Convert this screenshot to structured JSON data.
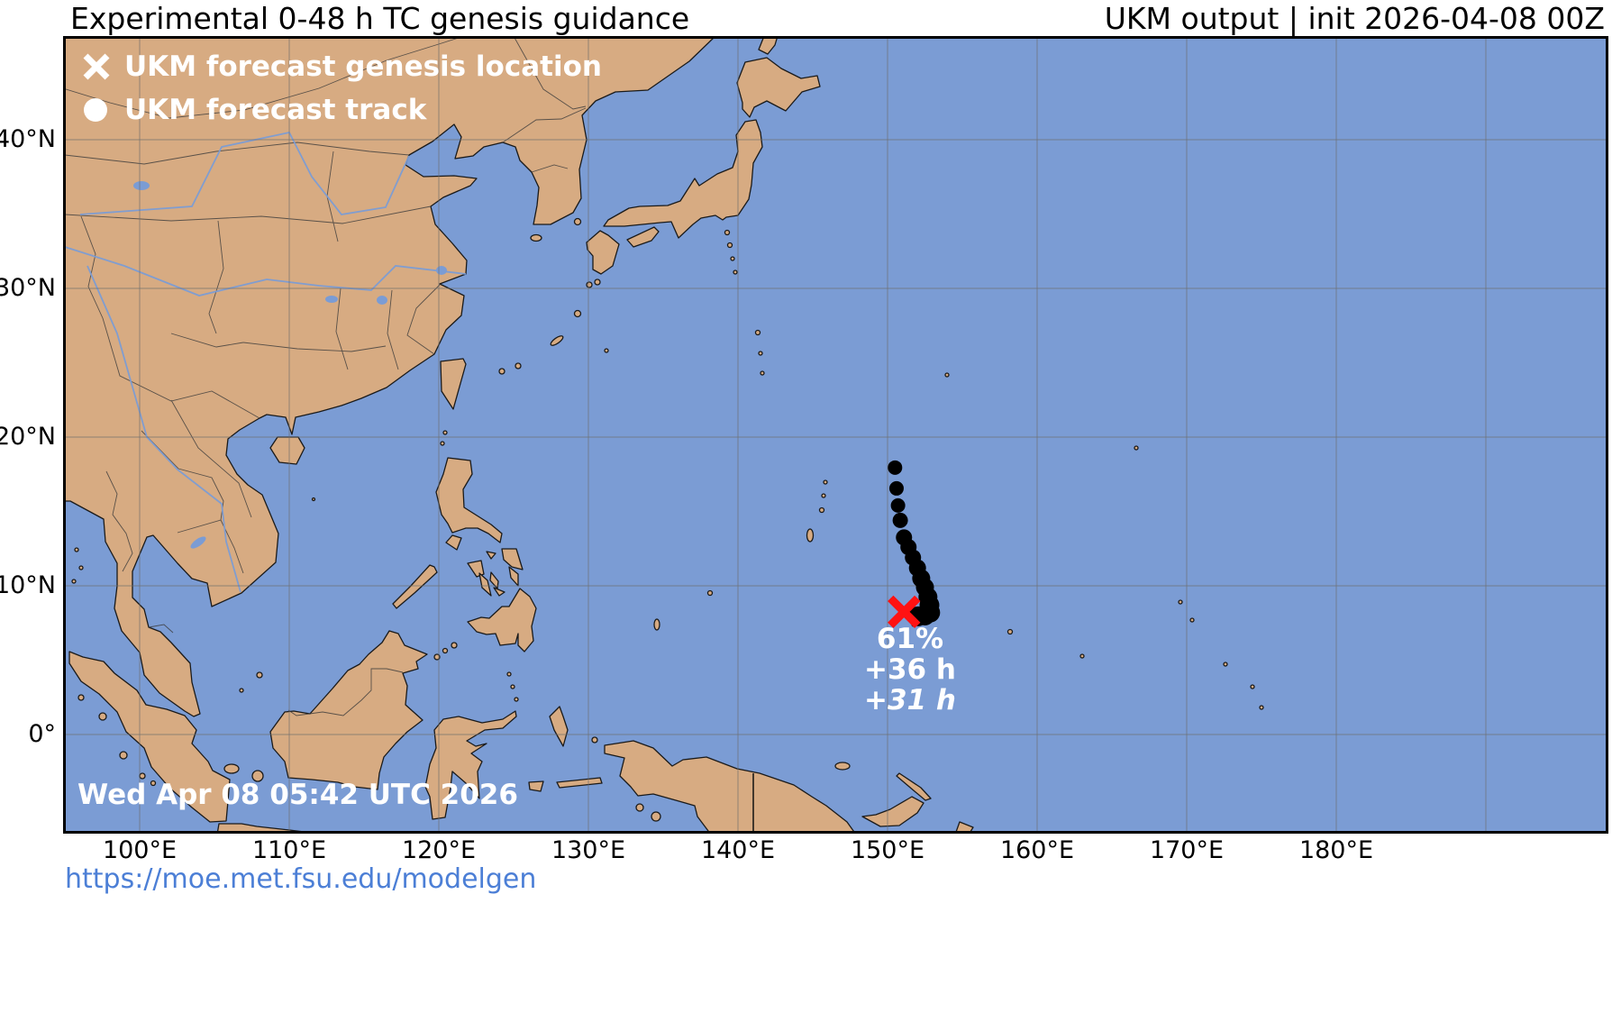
{
  "header": {
    "title_left": "Experimental 0-48 h TC genesis guidance",
    "title_right": "UKM output | init 2026-04-08 00Z"
  },
  "legend": {
    "items": [
      {
        "marker": "x-marker",
        "label": "UKM forecast genesis location"
      },
      {
        "marker": "circle-marker",
        "label": "UKM forecast track"
      }
    ]
  },
  "map": {
    "timestamp": "Wed Apr 08 05:42 UTC 2026",
    "annotation": {
      "probability": "61%",
      "valid_lead": "+36 h",
      "genesis_lead": "+31 h"
    },
    "axes": {
      "lat_ticks": [
        {
          "label": "40°N",
          "value": 40
        },
        {
          "label": "30°N",
          "value": 30
        },
        {
          "label": "20°N",
          "value": 20
        },
        {
          "label": "10°N",
          "value": 10
        },
        {
          "label": "0°",
          "value": 0
        }
      ],
      "lon_ticks": [
        {
          "label": "100°E",
          "value": 100
        },
        {
          "label": "110°E",
          "value": 110
        },
        {
          "label": "120°E",
          "value": 120
        },
        {
          "label": "130°E",
          "value": 130
        },
        {
          "label": "140°E",
          "value": 140
        },
        {
          "label": "150°E",
          "value": 150
        },
        {
          "label": "160°E",
          "value": 160
        },
        {
          "label": "170°E",
          "value": 170
        },
        {
          "label": "180°E",
          "value": 180
        }
      ]
    },
    "genesis_point": {
      "lon": 151.1,
      "lat": 8.25
    },
    "track_points": [
      {
        "lon": 150.5,
        "lat": 17.95,
        "r": 8
      },
      {
        "lon": 150.6,
        "lat": 16.55,
        "r": 8
      },
      {
        "lon": 150.7,
        "lat": 15.4,
        "r": 8
      },
      {
        "lon": 150.85,
        "lat": 14.4,
        "r": 8.5
      },
      {
        "lon": 151.1,
        "lat": 13.25,
        "r": 9
      },
      {
        "lon": 151.4,
        "lat": 12.6,
        "r": 9
      },
      {
        "lon": 151.7,
        "lat": 11.9,
        "r": 9
      },
      {
        "lon": 152.0,
        "lat": 11.2,
        "r": 9.5
      },
      {
        "lon": 152.25,
        "lat": 10.5,
        "r": 10
      },
      {
        "lon": 152.5,
        "lat": 9.9,
        "r": 10
      },
      {
        "lon": 152.7,
        "lat": 9.25,
        "r": 10.5
      },
      {
        "lon": 152.8,
        "lat": 8.7,
        "r": 11
      },
      {
        "lon": 152.85,
        "lat": 8.2,
        "r": 11
      },
      {
        "lon": 152.5,
        "lat": 8.0,
        "r": 11
      },
      {
        "lon": 152.05,
        "lat": 7.95,
        "r": 11
      }
    ],
    "colors": {
      "ocean": "#7b9cd4",
      "land": "#d7ab82",
      "track": "#000000",
      "genesis": "#ff1212",
      "legend_text": "#ffffff"
    }
  },
  "footer": {
    "url": "https://moe.met.fsu.edu/modelgen"
  }
}
